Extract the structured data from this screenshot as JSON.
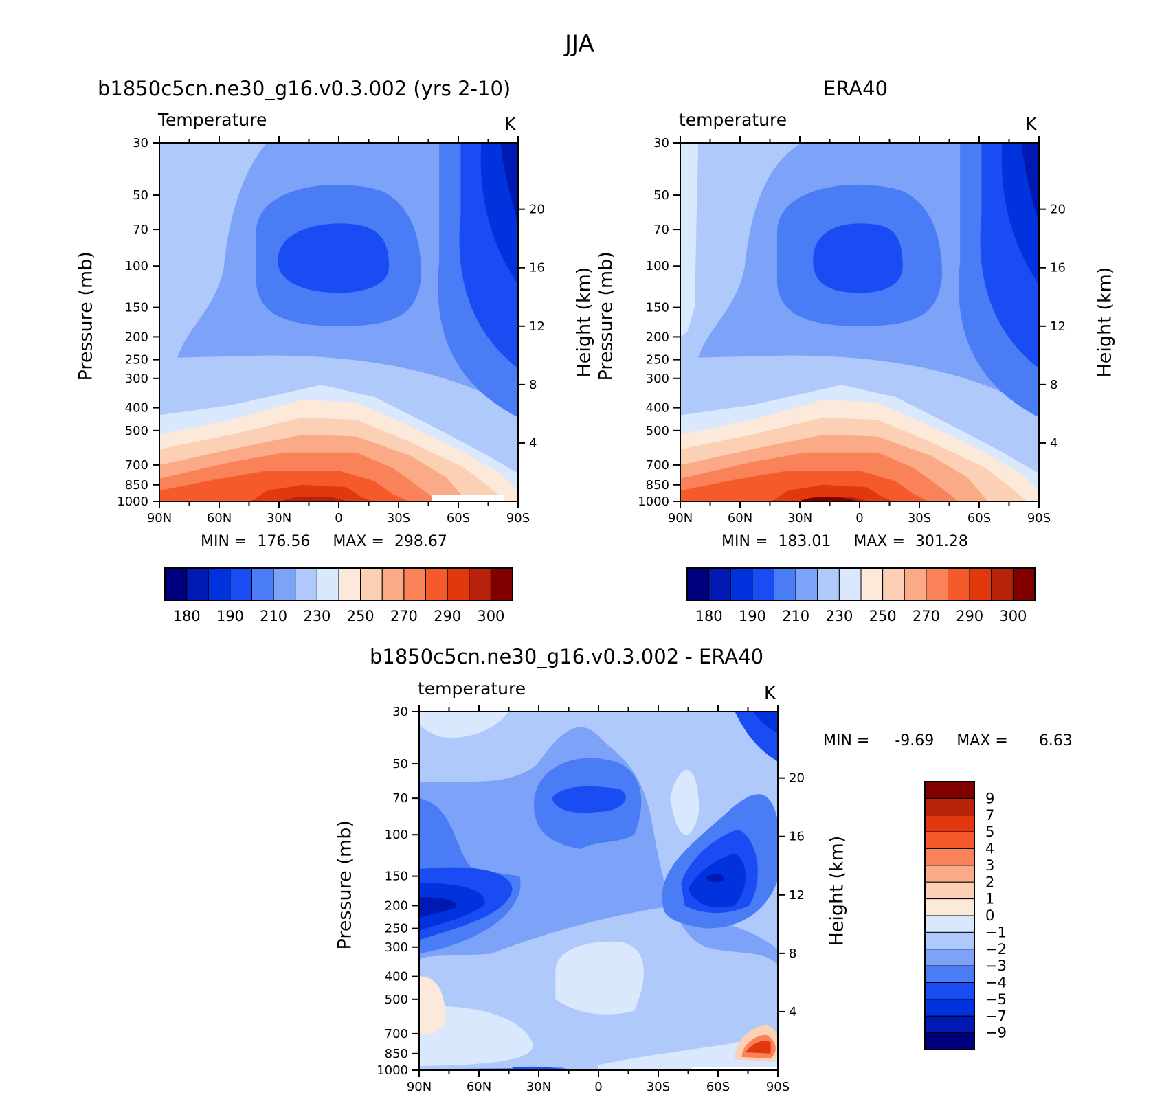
{
  "figure_title": "JJA",
  "colors": {
    "abs": [
      "#00007f",
      "#0019b2",
      "#0033dd",
      "#1a4cf3",
      "#4a7cf5",
      "#7da3f8",
      "#b0c9fb",
      "#d9e8fd",
      "#fde9d9",
      "#fcd0b4",
      "#fbaa88",
      "#f98258",
      "#f45a2a",
      "#e2380e",
      "#b8220a",
      "#800000"
    ],
    "diff": [
      "#800000",
      "#b8220a",
      "#e2380e",
      "#f45a2a",
      "#f98258",
      "#fbaa88",
      "#fcd0b4",
      "#fde9d9",
      "#d9e8fd",
      "#b0c9fb",
      "#7da3f8",
      "#4a7cf5",
      "#1a4cf3",
      "#0033dd",
      "#0019b2",
      "#00007f"
    ]
  },
  "chart_data": [
    {
      "type": "heatmap",
      "title": "b1850c5cn.ne30_g16.v0.3.002 (yrs 2-10)",
      "variable": "Temperature",
      "units": "K",
      "ylabel": "Pressure (mb)",
      "ylabel_right": "Height (km)",
      "x_ticks": [
        "90N",
        "60N",
        "30N",
        "0",
        "30S",
        "60S",
        "90S"
      ],
      "y_ticks": [
        "30",
        "50",
        "70",
        "100",
        "150",
        "200",
        "250",
        "300",
        "400",
        "500",
        "700",
        "850",
        "1000"
      ],
      "y_right_ticks": [
        "20",
        "16",
        "12",
        "8",
        "4"
      ],
      "min_label": "MIN =",
      "min_value": "176.56",
      "max_label": "MAX =",
      "max_value": "298.67",
      "colorbar_labels": [
        "180",
        "190",
        "210",
        "230",
        "250",
        "270",
        "290",
        "300"
      ],
      "colorbar_levels": [
        180,
        190,
        200,
        210,
        220,
        230,
        240,
        250,
        260,
        270,
        280,
        290,
        295,
        300,
        305
      ]
    },
    {
      "type": "heatmap",
      "title": "ERA40",
      "variable": "temperature",
      "units": "K",
      "ylabel": "Pressure (mb)",
      "ylabel_right": "Height (km)",
      "x_ticks": [
        "90N",
        "60N",
        "30N",
        "0",
        "30S",
        "60S",
        "90S"
      ],
      "y_ticks": [
        "30",
        "50",
        "70",
        "100",
        "150",
        "200",
        "250",
        "300",
        "400",
        "500",
        "700",
        "850",
        "1000"
      ],
      "y_right_ticks": [
        "20",
        "16",
        "12",
        "8",
        "4"
      ],
      "min_label": "MIN =",
      "min_value": "183.01",
      "max_label": "MAX =",
      "max_value": "301.28",
      "colorbar_labels": [
        "180",
        "190",
        "210",
        "230",
        "250",
        "270",
        "290",
        "300"
      ],
      "colorbar_levels": [
        180,
        190,
        200,
        210,
        220,
        230,
        240,
        250,
        260,
        270,
        280,
        290,
        295,
        300,
        305
      ]
    },
    {
      "type": "heatmap",
      "title": "b1850c5cn.ne30_g16.v0.3.002 - ERA40",
      "variable": "temperature",
      "units": "K",
      "ylabel": "Pressure (mb)",
      "ylabel_right": "Height (km)",
      "x_ticks": [
        "90N",
        "60N",
        "30N",
        "0",
        "30S",
        "60S",
        "90S"
      ],
      "y_ticks": [
        "30",
        "50",
        "70",
        "100",
        "150",
        "200",
        "250",
        "300",
        "400",
        "500",
        "700",
        "850",
        "1000"
      ],
      "y_right_ticks": [
        "20",
        "16",
        "12",
        "8",
        "4"
      ],
      "min_label": "MIN =",
      "min_value": "-9.69",
      "max_label": "MAX =",
      "max_value": "6.63",
      "colorbar_labels": [
        "9",
        "7",
        "5",
        "4",
        "3",
        "2",
        "1",
        "0",
        "-1",
        "-2",
        "-3",
        "-4",
        "-5",
        "-7",
        "-9"
      ],
      "colorbar_levels": [
        9,
        7,
        5,
        4,
        3,
        2,
        1,
        0,
        -1,
        -2,
        -3,
        -4,
        -5,
        -7,
        -9
      ]
    }
  ]
}
